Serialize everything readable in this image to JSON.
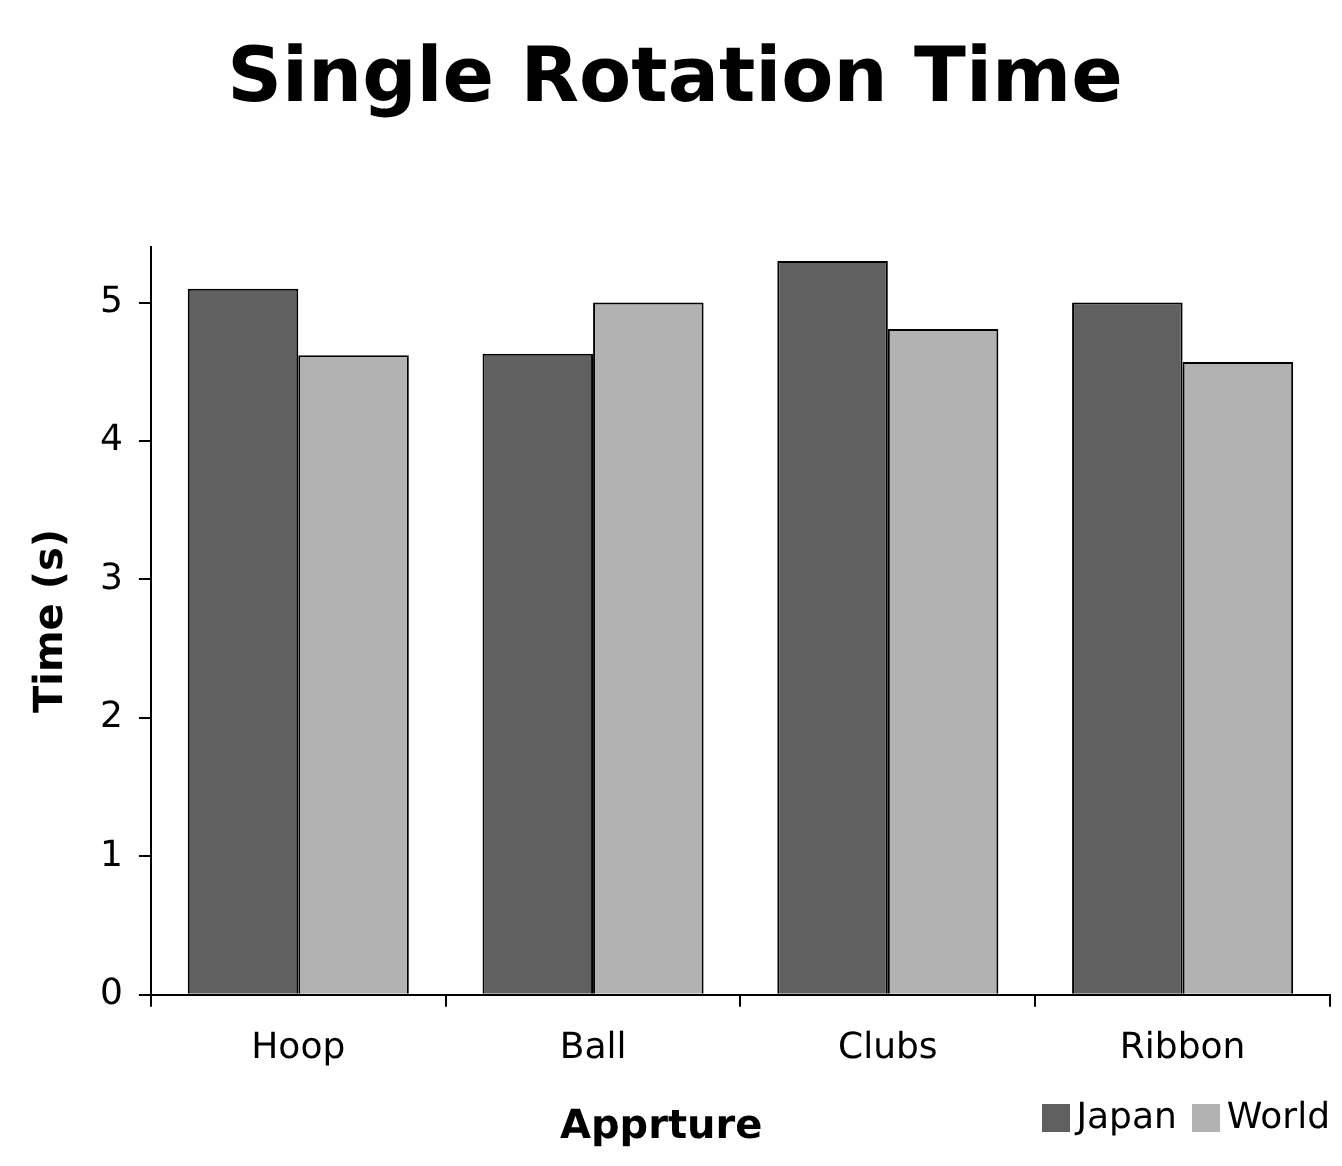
{
  "chart_data": {
    "type": "bar",
    "title": "Single Rotation Time",
    "xlabel": "Apprture",
    "ylabel": "Time (s)",
    "categories": [
      "Hoop",
      "Ball",
      "Clubs",
      "Ribbon"
    ],
    "series": [
      {
        "name": "Japan",
        "color": "#606060",
        "values": [
          5.1,
          4.63,
          5.3,
          5.0
        ]
      },
      {
        "name": "World",
        "color": "#b2b2b2",
        "values": [
          4.62,
          5.0,
          4.81,
          4.57
        ]
      }
    ],
    "ylim": [
      0,
      5.4
    ],
    "yticks": [
      0,
      1,
      2,
      3,
      4,
      5
    ],
    "grid": false,
    "legend": "bottom right"
  }
}
